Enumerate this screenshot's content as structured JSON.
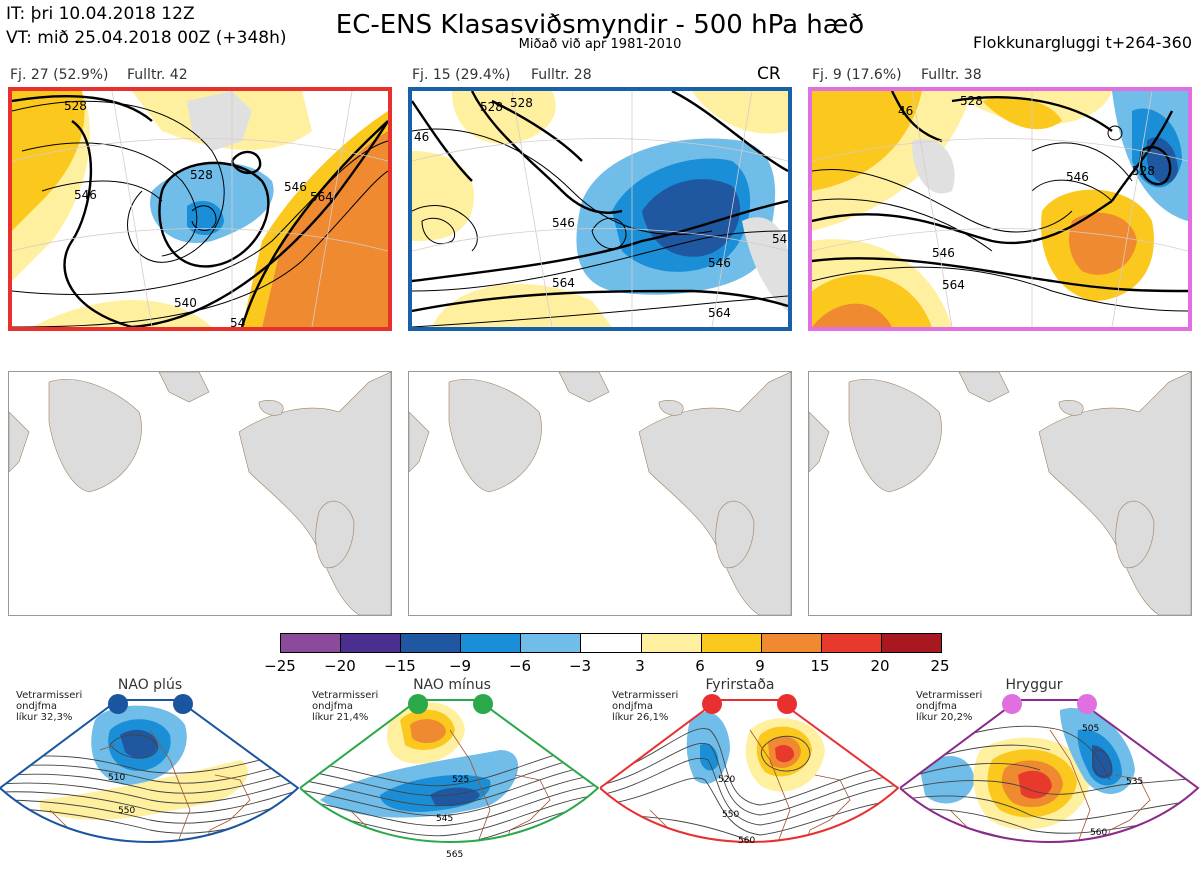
{
  "header": {
    "it_line": "IT: þri 10.04.2018 12Z",
    "vt_line": "VT: mið 25.04.2018 00Z  (+348h)",
    "title": "EC-ENS Klasasviðsmyndir - 500 hPa hæð",
    "subtitle": "Miðað við apr 1981-2010",
    "window": "Flokkunargluggi t+264-360"
  },
  "clusters": [
    {
      "label": "Fj. 27 (52.9%)",
      "fulltr": "Fulltr. 42",
      "border": "#e8302c",
      "contours": [
        "528",
        "528",
        "546",
        "546",
        "564",
        "540",
        "54"
      ]
    },
    {
      "label": "Fj. 15 (29.4%)",
      "fulltr": "Fulltr. 28",
      "border": "#1860a8",
      "badge": "CR",
      "contours": [
        "528",
        "528",
        "46",
        "546",
        "546",
        "564",
        "564",
        "54"
      ]
    },
    {
      "label": "Fj. 9 (17.6%)",
      "fulltr": "Fulltr. 38",
      "border": "#e070e0",
      "contours": [
        "528",
        "46",
        "546",
        "546",
        "564",
        "528"
      ]
    }
  ],
  "colorbar": {
    "ticks": [
      "−25",
      "−20",
      "−15",
      "−9",
      "−6",
      "−3",
      "3",
      "6",
      "9",
      "15",
      "20",
      "25"
    ],
    "colors": [
      "#8a4b9a",
      "#4a2f90",
      "#1f57a0",
      "#1a8fd8",
      "#6fbde8",
      "#ffffff",
      "#fff0a0",
      "#fbc81e",
      "#f08a30",
      "#e83a2c",
      "#a81820"
    ]
  },
  "regimes": [
    {
      "title": "NAO plús",
      "line1": "Vetrarmisseri",
      "line2": "ondjfma",
      "line3": "líkur 32,3%",
      "dot": "#1a55a0",
      "border": "#1a55a0",
      "labels": [
        "510",
        "550"
      ]
    },
    {
      "title": "NAO mínus",
      "line1": "Vetrarmisseri",
      "line2": "ondjfma",
      "line3": "líkur 21,4%",
      "dot": "#2aa84a",
      "border": "#2aa84a",
      "labels": [
        "525",
        "545",
        "565"
      ]
    },
    {
      "title": "Fyrirstaða",
      "line1": "Vetrarmisseri",
      "line2": "ondjfma",
      "line3": "líkur 26,1%",
      "dot": "#e83030",
      "border": "#e83030",
      "labels": [
        "520",
        "550",
        "560"
      ]
    },
    {
      "title": "Hryggur",
      "line1": "Vetrarmisseri",
      "line2": "ondjfma",
      "line3": "líkur 20,2%",
      "dot": "#e070e0",
      "border": "#8a2a8a",
      "labels": [
        "505",
        "535",
        "560"
      ]
    }
  ]
}
